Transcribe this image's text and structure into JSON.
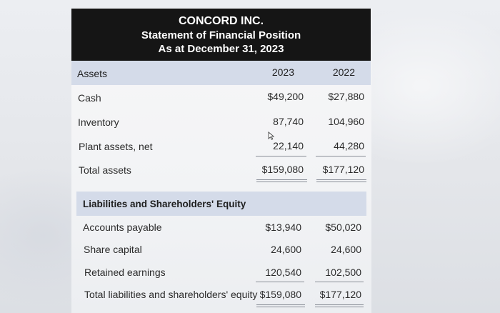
{
  "header": {
    "company": "CONCORD INC.",
    "statement": "Statement of Financial Position",
    "date": "As at December 31, 2023"
  },
  "assets": {
    "heading": "Assets",
    "col_2023": "2023",
    "col_2022": "2022",
    "rows": [
      {
        "label": "Cash",
        "v2023": "$49,200",
        "v2022": "$27,880"
      },
      {
        "label": "Inventory",
        "v2023": "87,740",
        "v2022": "104,960"
      },
      {
        "label": "Plant assets, net",
        "v2023": "22,140",
        "v2022": "44,280"
      }
    ],
    "total": {
      "label": "Total assets",
      "v2023": "$159,080",
      "v2022": "$177,120"
    }
  },
  "liabilities": {
    "heading": "Liabilities and Shareholders' Equity",
    "rows": [
      {
        "label": "Accounts payable",
        "v2023": "$13,940",
        "v2022": "$50,020"
      },
      {
        "label": "Share capital",
        "v2023": "24,600",
        "v2022": "24,600"
      },
      {
        "label": "Retained earnings",
        "v2023": "120,540",
        "v2022": "102,500"
      }
    ],
    "total": {
      "label": "Total liabilities and shareholders' equity",
      "v2023": "$159,080",
      "v2022": "$177,120"
    }
  }
}
